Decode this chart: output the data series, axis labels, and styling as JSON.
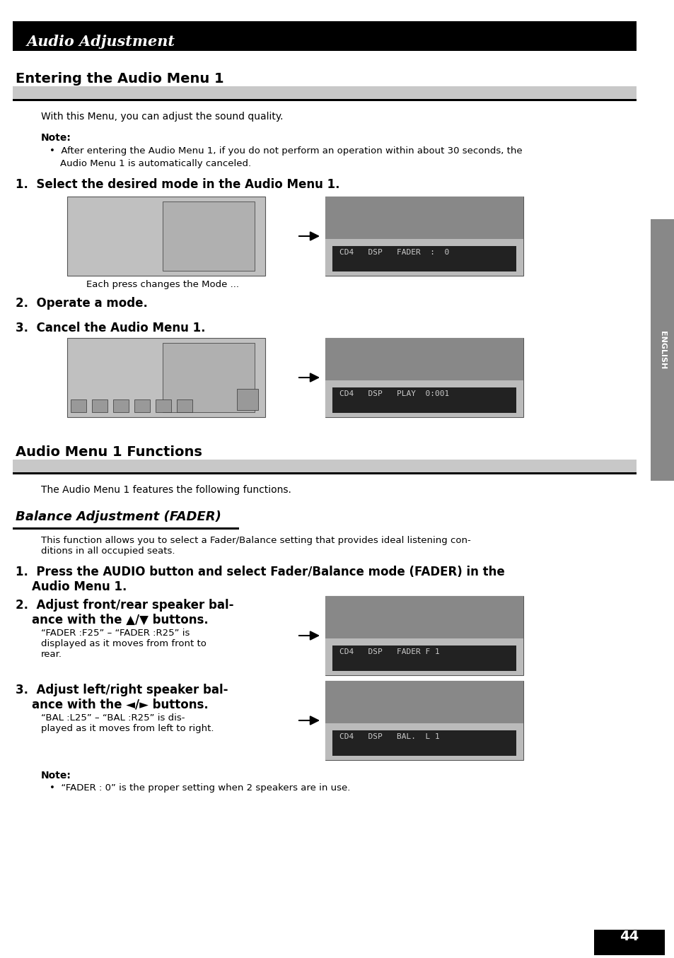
{
  "page_bg": "#ffffff",
  "title_bar_color": "#000000",
  "title_text": "Audio Adjustment",
  "title_text_color": "#ffffff",
  "section1_title": "Entering the Audio Menu 1",
  "section2_title": "Audio Menu 1 Functions",
  "section3_title": "Balance Adjustment (FADER)",
  "body_text_color": "#000000",
  "page_number": "44",
  "english_tab": "ENGLISH",
  "tab_bg": "#888888",
  "tab_text_color": "#ffffff",
  "header_gray": "#c8c8c8",
  "underline_black": "#000000",
  "img_gray": "#c0c0c0",
  "img_dark": "#888888"
}
